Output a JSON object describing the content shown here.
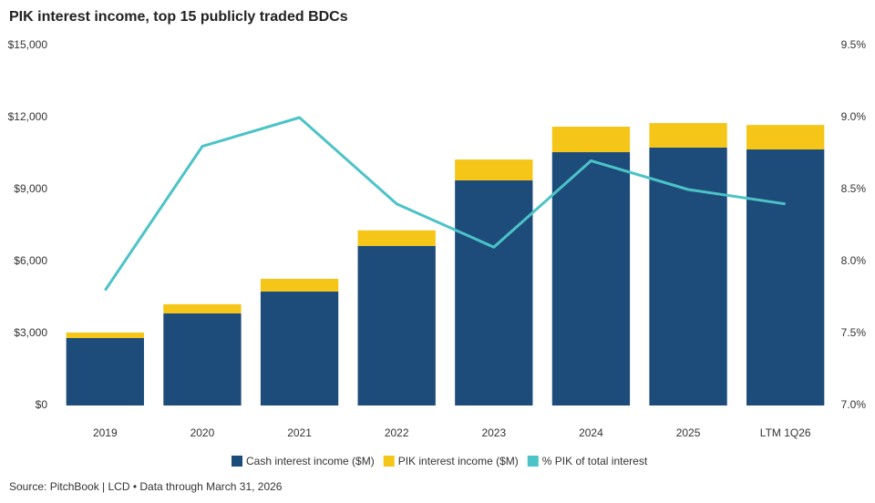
{
  "chart_data": {
    "type": "bar",
    "stacked": true,
    "title": "PIK interest income, top 15 publicly traded BDCs",
    "source": "Source: PitchBook | LCD • Data through March 31, 2026",
    "categories": [
      "2019",
      "2020",
      "2021",
      "2022",
      "2023",
      "2024",
      "2025",
      "LTM 1Q26"
    ],
    "series": [
      {
        "name": "Cash interest income ($M)",
        "color": "#1d4c7a",
        "values": [
          2810,
          3840,
          4750,
          6650,
          9380,
          10560,
          10750,
          10670
        ]
      },
      {
        "name": "PIK interest income ($M)",
        "color": "#f5c518",
        "values": [
          230,
          380,
          530,
          650,
          870,
          1060,
          1020,
          1020
        ]
      },
      {
        "name": "% PIK of total interest",
        "color": "#4cc3c7",
        "type": "line",
        "axis": "y2",
        "values": [
          7.8,
          8.8,
          9.0,
          8.4,
          8.1,
          8.7,
          8.5,
          8.4
        ]
      }
    ],
    "ylim": [
      0,
      15000
    ],
    "yticks": [
      {
        "value": 0,
        "label": "$0"
      },
      {
        "value": 3000,
        "label": "$3,000"
      },
      {
        "value": 6000,
        "label": "$6,000"
      },
      {
        "value": 9000,
        "label": "$9,000"
      },
      {
        "value": 12000,
        "label": "$12,000"
      },
      {
        "value": 15000,
        "label": "$15,000"
      }
    ],
    "y2lim": [
      7,
      9.5
    ],
    "y2ticks": [
      {
        "value": 7,
        "label": "7.0%"
      },
      {
        "value": 7.5,
        "label": "7.5%"
      },
      {
        "value": 8,
        "label": "8.0%"
      },
      {
        "value": 8.5,
        "label": "8.5%"
      },
      {
        "value": 9,
        "label": "9.0%"
      },
      {
        "value": 9.5,
        "label": "9.5%"
      }
    ]
  }
}
